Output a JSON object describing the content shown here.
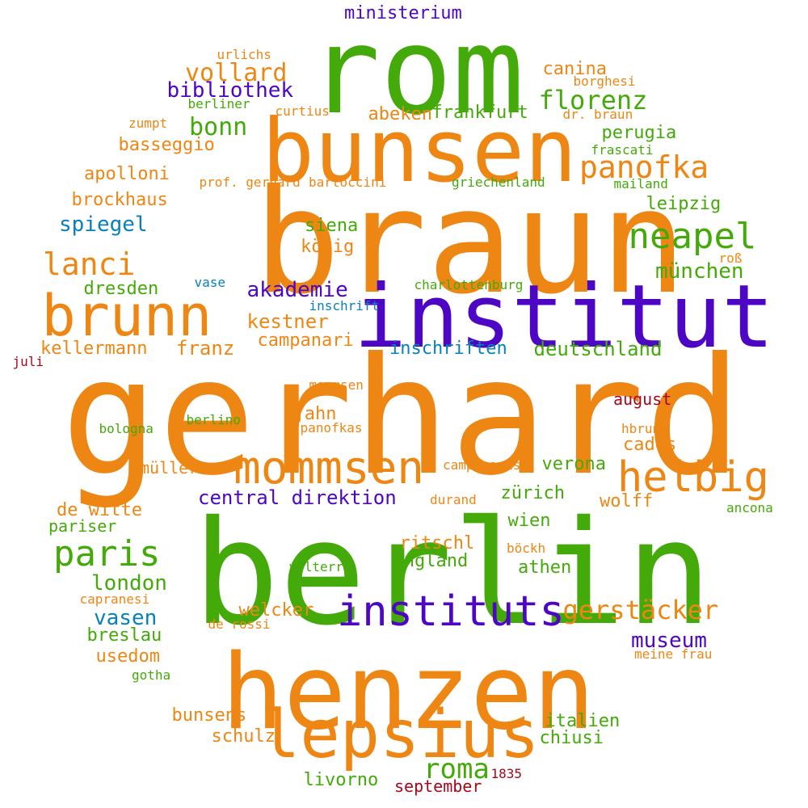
{
  "colors": {
    "orange": "#ee8614",
    "green": "#44aa0a",
    "purple": "#4d06c4",
    "blue": "#0781bb",
    "red": "#a9061c"
  },
  "words": [
    {
      "text": "gerhard",
      "color": "orange"
    },
    {
      "text": "berlin",
      "color": "green"
    },
    {
      "text": "braun",
      "color": "orange"
    },
    {
      "text": "henzen",
      "color": "orange"
    },
    {
      "text": "rom",
      "color": "green"
    },
    {
      "text": "bunsen",
      "color": "orange"
    },
    {
      "text": "institut",
      "color": "purple"
    },
    {
      "text": "brunn",
      "color": "orange"
    },
    {
      "text": "lepsius",
      "color": "orange"
    },
    {
      "text": "mommsen",
      "color": "orange"
    },
    {
      "text": "instituts",
      "color": "purple"
    },
    {
      "text": "helbig",
      "color": "orange"
    },
    {
      "text": "paris",
      "color": "green"
    },
    {
      "text": "neapel",
      "color": "green"
    },
    {
      "text": "panofka",
      "color": "orange"
    },
    {
      "text": "lanci",
      "color": "orange"
    },
    {
      "text": "roma",
      "color": "green"
    },
    {
      "text": "gerstäcker",
      "color": "orange"
    },
    {
      "text": "florenz",
      "color": "green"
    },
    {
      "text": "vollard",
      "color": "orange"
    },
    {
      "text": "bibliothek",
      "color": "purple"
    },
    {
      "text": "bonn",
      "color": "green"
    },
    {
      "text": "akademie",
      "color": "purple"
    },
    {
      "text": "münchen",
      "color": "green"
    },
    {
      "text": "spiegel",
      "color": "blue"
    },
    {
      "text": "museum",
      "color": "purple"
    },
    {
      "text": "vasen",
      "color": "blue"
    },
    {
      "text": "london",
      "color": "green"
    },
    {
      "text": "central direktion",
      "color": "purple"
    },
    {
      "text": "deutschland",
      "color": "green"
    },
    {
      "text": "kestner",
      "color": "orange"
    },
    {
      "text": "franz",
      "color": "orange"
    },
    {
      "text": "ministerium",
      "color": "purple"
    },
    {
      "text": "perugia",
      "color": "green"
    },
    {
      "text": "canina",
      "color": "orange"
    },
    {
      "text": "basseggio",
      "color": "orange"
    },
    {
      "text": "apolloni",
      "color": "orange"
    },
    {
      "text": "brockhaus",
      "color": "orange"
    },
    {
      "text": "leipzig",
      "color": "green"
    },
    {
      "text": "siena",
      "color": "green"
    },
    {
      "text": "inschriften",
      "color": "blue"
    },
    {
      "text": "kellermann",
      "color": "orange"
    },
    {
      "text": "campanari",
      "color": "orange"
    },
    {
      "text": "frankfurt",
      "color": "green"
    },
    {
      "text": "abeken",
      "color": "orange"
    },
    {
      "text": "könig",
      "color": "orange"
    },
    {
      "text": "dresden",
      "color": "green"
    },
    {
      "text": "jahn",
      "color": "orange"
    },
    {
      "text": "de witte",
      "color": "orange"
    },
    {
      "text": "ritschl",
      "color": "orange"
    },
    {
      "text": "england",
      "color": "green"
    },
    {
      "text": "athen",
      "color": "green"
    },
    {
      "text": "welcker",
      "color": "orange"
    },
    {
      "text": "breslau",
      "color": "green"
    },
    {
      "text": "usedom",
      "color": "orange"
    },
    {
      "text": "bunsens",
      "color": "orange"
    },
    {
      "text": "schulz",
      "color": "orange"
    },
    {
      "text": "livorno",
      "color": "green"
    },
    {
      "text": "italien",
      "color": "green"
    },
    {
      "text": "chiusi",
      "color": "green"
    },
    {
      "text": "zürich",
      "color": "green"
    },
    {
      "text": "wolff",
      "color": "orange"
    },
    {
      "text": "wien",
      "color": "green"
    },
    {
      "text": "verona",
      "color": "green"
    },
    {
      "text": "cades",
      "color": "orange"
    },
    {
      "text": "august",
      "color": "red"
    },
    {
      "text": "pariser",
      "color": "green"
    },
    {
      "text": "september",
      "color": "red"
    },
    {
      "text": "müller",
      "color": "orange"
    },
    {
      "text": "urlichs",
      "color": "orange"
    },
    {
      "text": "borghesi",
      "color": "orange"
    },
    {
      "text": "berliner",
      "color": "green"
    },
    {
      "text": "curtius",
      "color": "orange"
    },
    {
      "text": "dr. braun",
      "color": "orange"
    },
    {
      "text": "zumpt",
      "color": "orange"
    },
    {
      "text": "frascati",
      "color": "green"
    },
    {
      "text": "prof. gerhard",
      "color": "orange"
    },
    {
      "text": "bartoccini",
      "color": "orange"
    },
    {
      "text": "griechenland",
      "color": "green"
    },
    {
      "text": "mailand",
      "color": "green"
    },
    {
      "text": "roß",
      "color": "orange"
    },
    {
      "text": "vase",
      "color": "blue"
    },
    {
      "text": "charlottenburg",
      "color": "green"
    },
    {
      "text": "inschrift",
      "color": "blue"
    },
    {
      "text": "juli",
      "color": "red"
    },
    {
      "text": "mommsen",
      "color": "orange"
    },
    {
      "text": "bologna",
      "color": "green"
    },
    {
      "text": "panofkas",
      "color": "orange"
    },
    {
      "text": "berlino",
      "color": "green"
    },
    {
      "text": "hbrunn",
      "color": "orange"
    },
    {
      "text": "campanaris",
      "color": "orange"
    },
    {
      "text": "durand",
      "color": "orange"
    },
    {
      "text": "ancona",
      "color": "green"
    },
    {
      "text": "böckh",
      "color": "orange"
    },
    {
      "text": "volterra",
      "color": "green"
    },
    {
      "text": "capranesi",
      "color": "orange"
    },
    {
      "text": "de rossi",
      "color": "orange"
    },
    {
      "text": "meine frau",
      "color": "orange"
    },
    {
      "text": "gotha",
      "color": "green"
    },
    {
      "text": "1835",
      "color": "red"
    }
  ]
}
